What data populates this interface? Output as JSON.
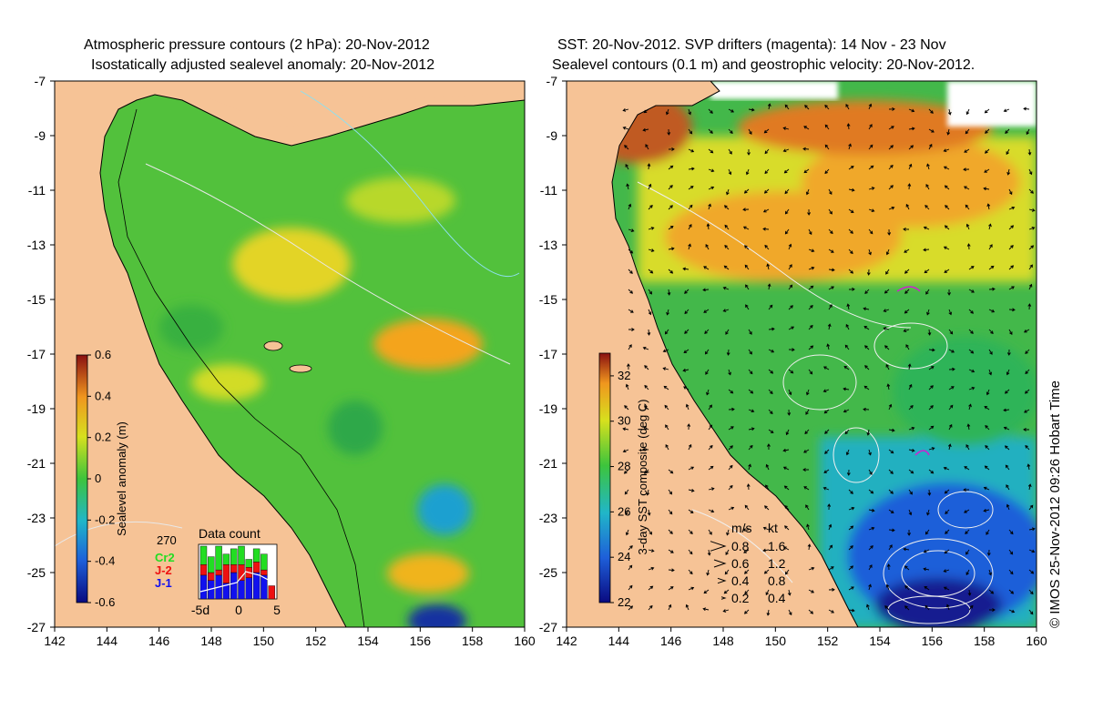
{
  "left_panel": {
    "title_line1": "Atmospheric pressure contours (2 hPa): 20-Nov-2012",
    "title_line2": "Isostatically adjusted sealevel anomaly: 20-Nov-2012",
    "colorbar": {
      "label": "Sealevel anomaly (m)",
      "ticks": [
        "0.6",
        "0.4",
        "0.2",
        "0",
        "-0.2",
        "-0.4",
        "-0.6"
      ],
      "range": [
        -0.6,
        0.6
      ]
    },
    "inset": {
      "title": "Data count",
      "y_max_label": "270",
      "legend": [
        {
          "label": "Cr2",
          "color": "#22dd22"
        },
        {
          "label": "J-2",
          "color": "#ee1111"
        },
        {
          "label": "J-1",
          "color": "#1111ee"
        }
      ],
      "x_ticks": [
        "-5d",
        "0",
        "5"
      ],
      "bars": [
        {
          "x": -5,
          "blue": 0.45,
          "red": 0.2,
          "green": 0.35
        },
        {
          "x": -4,
          "blue": 0.35,
          "red": 0.15,
          "green": 0.3
        },
        {
          "x": -3,
          "blue": 0.45,
          "red": 0.1,
          "green": 0.45
        },
        {
          "x": -2,
          "blue": 0.3,
          "red": 0.35,
          "green": 0.2
        },
        {
          "x": -1,
          "blue": 0.5,
          "red": 0.15,
          "green": 0.3
        },
        {
          "x": 0,
          "blue": 0.35,
          "red": 0.3,
          "green": 0.35
        },
        {
          "x": 1,
          "blue": 0.4,
          "red": 0.2,
          "green": 0.15
        },
        {
          "x": 2,
          "blue": 0.5,
          "red": 0.2,
          "green": 0.25
        },
        {
          "x": 3,
          "blue": 0.45,
          "red": 0.1,
          "green": 0.3
        },
        {
          "x": 4,
          "blue": 0.0,
          "red": 0.25,
          "green": 0.0
        }
      ]
    }
  },
  "right_panel": {
    "title_line1": "SST: 20-Nov-2012. SVP drifters (magenta): 14 Nov - 23 Nov",
    "title_line2": "Sealevel contours (0.1 m) and geostrophic velocity: 20-Nov-2012.",
    "colorbar": {
      "label": "3-day SST composite (deg C)",
      "ticks": [
        "32",
        "30",
        "28",
        "26",
        "24",
        "22"
      ],
      "range": [
        22,
        33
      ]
    },
    "velocity_legend": {
      "header_ms": "m/s",
      "header_kt": "kt",
      "rows": [
        {
          "ms": "0.8",
          "kt": "1.6"
        },
        {
          "ms": "0.6",
          "kt": "1.2"
        },
        {
          "ms": "0.4",
          "kt": "0.8"
        },
        {
          "ms": "0.2",
          "kt": "0.4"
        }
      ]
    }
  },
  "axes": {
    "x_ticks": [
      "142",
      "144",
      "146",
      "148",
      "150",
      "152",
      "154",
      "156",
      "158",
      "160"
    ],
    "y_ticks": [
      "-7",
      "-9",
      "-11",
      "-13",
      "-15",
      "-17",
      "-19",
      "-21",
      "-23",
      "-25",
      "-27"
    ],
    "x_range": [
      142,
      160
    ],
    "y_range": [
      -27,
      -7
    ]
  },
  "credit": "© IMOS 25-Nov-2012 09:26 Hobart Time",
  "colors": {
    "land": "#f6c396",
    "sla_base": "#52c13c",
    "sst_base": "#43b84a"
  }
}
